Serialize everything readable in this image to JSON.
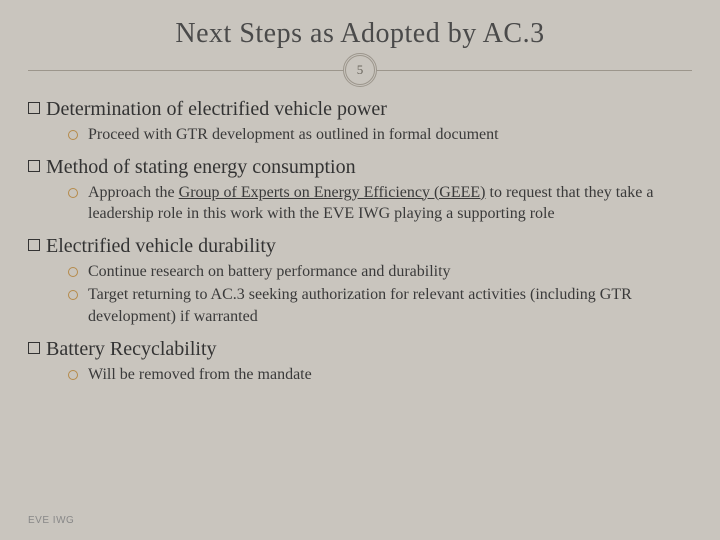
{
  "title": "Next Steps as Adopted by AC.3",
  "page_number": "5",
  "accent_color": "#b58a4a",
  "topics": [
    {
      "head": "Determination of electrified vehicle power",
      "subs": [
        {
          "text": "Proceed with GTR development as outlined in formal document"
        }
      ]
    },
    {
      "head": "Method of stating energy consumption",
      "subs": [
        {
          "pre": "Approach the ",
          "ul": "Group of Experts on Energy Efficiency (GEEE)",
          "post": " to request that they take a leadership role in this work with the EVE IWG playing a supporting role"
        }
      ]
    },
    {
      "head": "Electrified vehicle durability",
      "subs": [
        {
          "text": "Continue  research on battery  performance  and  durability"
        },
        {
          "text": "Target returning to AC.3 seeking authorization  for relevant activities (including GTR development) if warranted"
        }
      ]
    },
    {
      "head": "Battery Recyclability",
      "subs": [
        {
          "text": "Will be removed from the mandate"
        }
      ]
    }
  ],
  "footer": "EVE IWG"
}
